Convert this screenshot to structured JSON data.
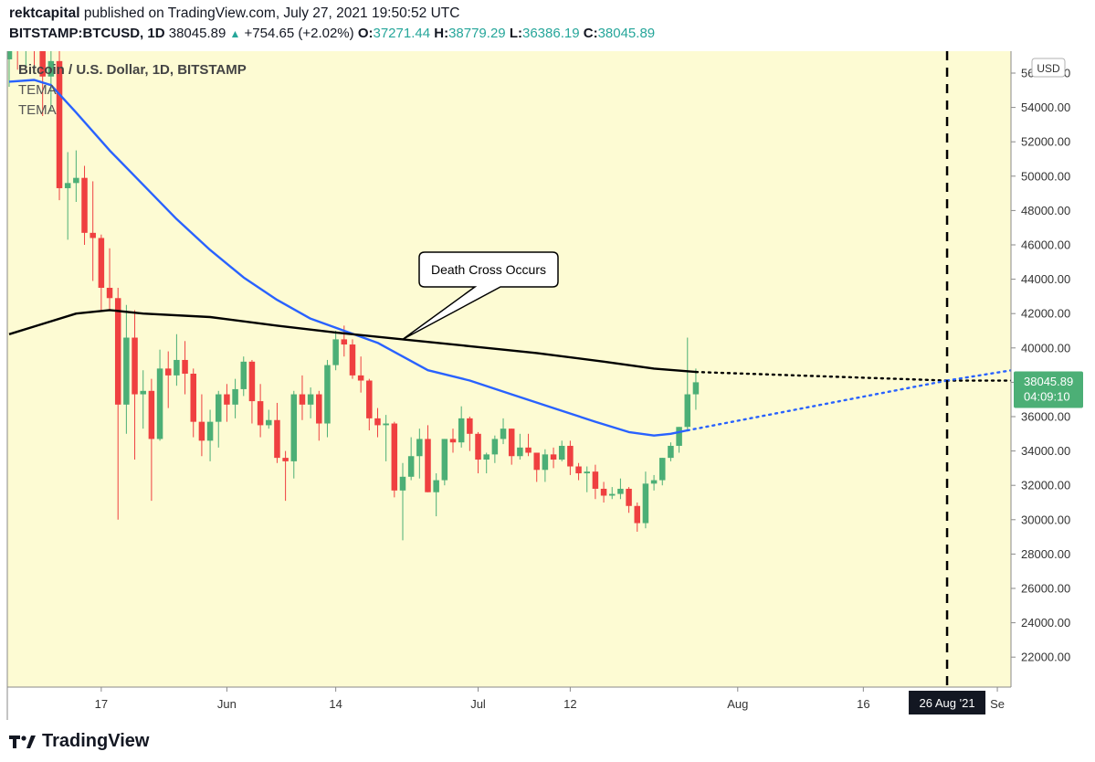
{
  "header": {
    "author": "rektcapital",
    "published_text": "published on TradingView.com, July 27, 2021 19:50:52 UTC"
  },
  "ohlc_bar": {
    "symbol": "BITSTAMP:BTCUSD, 1D",
    "last": "38045.89",
    "up_arrow": "▲",
    "change": "+754.65 (+2.02%)",
    "o_label": "O:",
    "o_value": "37271.44",
    "h_label": "H:",
    "h_value": "38779.29",
    "l_label": "L:",
    "l_value": "36386.19",
    "c_label": "C:",
    "c_value": "38045.89"
  },
  "legend": {
    "title": "Bitcoin / U.S. Dollar, 1D, BITSTAMP",
    "indicator_1": "TEMA",
    "indicator_2": "TEMA"
  },
  "price_axis": {
    "currency": "USD",
    "ticks": [
      "56000.00",
      "54000.00",
      "52000.00",
      "50000.00",
      "48000.00",
      "46000.00",
      "44000.00",
      "42000.00",
      "40000.00",
      "38000.00",
      "36000.00",
      "34000.00",
      "32000.00",
      "30000.00",
      "28000.00",
      "26000.00",
      "24000.00",
      "22000.00"
    ],
    "last_price_label": "38045.89",
    "countdown_label": "04:09:10"
  },
  "time_axis": {
    "ticks": [
      "17",
      "Jun",
      "14",
      "Jul",
      "12",
      "Aug",
      "16",
      "Se"
    ],
    "crosshair_label": "26 Aug '21"
  },
  "annotation": {
    "text": "Death Cross Occurs"
  },
  "footer": {
    "brand": "TradingView"
  },
  "colors": {
    "background": "#fdfbd3",
    "up": "#4caf76",
    "down": "#ef4040",
    "tema_fast": "#2962ff",
    "tema_slow": "#000000",
    "last_price_badge": "#4caf76"
  },
  "chart_data": {
    "type": "candlestick",
    "title": "Bitcoin / U.S. Dollar, 1D, BITSTAMP",
    "ylabel": "USD",
    "ylim": [
      21000,
      57500
    ],
    "xlim": [
      "2021-05-06",
      "2021-09-04"
    ],
    "candles": [
      {
        "d": "2021-05-06",
        "o": 56800,
        "h": 58400,
        "l": 55200,
        "c": 57400
      },
      {
        "d": "2021-05-07",
        "o": 57400,
        "h": 58100,
        "l": 56200,
        "c": 57300
      },
      {
        "d": "2021-05-08",
        "o": 57400,
        "h": 59400,
        "l": 56400,
        "c": 58800
      },
      {
        "d": "2021-05-09",
        "o": 58900,
        "h": 59200,
        "l": 56300,
        "c": 58200
      },
      {
        "d": "2021-05-10",
        "o": 58200,
        "h": 59500,
        "l": 53500,
        "c": 55800
      },
      {
        "d": "2021-05-11",
        "o": 55800,
        "h": 57300,
        "l": 53800,
        "c": 56700
      },
      {
        "d": "2021-05-12",
        "o": 56700,
        "h": 58000,
        "l": 48600,
        "c": 49300
      },
      {
        "d": "2021-05-13",
        "o": 49300,
        "h": 51400,
        "l": 46300,
        "c": 49600
      },
      {
        "d": "2021-05-14",
        "o": 49600,
        "h": 51500,
        "l": 48500,
        "c": 49900
      },
      {
        "d": "2021-05-15",
        "o": 49900,
        "h": 50600,
        "l": 46000,
        "c": 46700
      },
      {
        "d": "2021-05-16",
        "o": 46700,
        "h": 49700,
        "l": 43900,
        "c": 46400
      },
      {
        "d": "2021-05-17",
        "o": 46400,
        "h": 46600,
        "l": 42200,
        "c": 43500
      },
      {
        "d": "2021-05-18",
        "o": 43500,
        "h": 45800,
        "l": 42200,
        "c": 42900
      },
      {
        "d": "2021-05-19",
        "o": 42900,
        "h": 43500,
        "l": 30000,
        "c": 36700
      },
      {
        "d": "2021-05-20",
        "o": 36700,
        "h": 42500,
        "l": 35000,
        "c": 40600
      },
      {
        "d": "2021-05-21",
        "o": 40600,
        "h": 42200,
        "l": 33500,
        "c": 37300
      },
      {
        "d": "2021-05-22",
        "o": 37300,
        "h": 38700,
        "l": 35300,
        "c": 37500
      },
      {
        "d": "2021-05-23",
        "o": 37500,
        "h": 38200,
        "l": 31100,
        "c": 34700
      },
      {
        "d": "2021-05-24",
        "o": 34700,
        "h": 39900,
        "l": 34600,
        "c": 38800
      },
      {
        "d": "2021-05-25",
        "o": 38800,
        "h": 39800,
        "l": 36500,
        "c": 38400
      },
      {
        "d": "2021-05-26",
        "o": 38400,
        "h": 40800,
        "l": 37800,
        "c": 39300
      },
      {
        "d": "2021-05-27",
        "o": 39300,
        "h": 40400,
        "l": 37300,
        "c": 38500
      },
      {
        "d": "2021-05-28",
        "o": 38500,
        "h": 38800,
        "l": 34800,
        "c": 35700
      },
      {
        "d": "2021-05-29",
        "o": 35700,
        "h": 37300,
        "l": 33700,
        "c": 34600
      },
      {
        "d": "2021-05-30",
        "o": 34600,
        "h": 36400,
        "l": 33400,
        "c": 35700
      },
      {
        "d": "2021-05-31",
        "o": 35700,
        "h": 37500,
        "l": 34200,
        "c": 37300
      },
      {
        "d": "2021-06-01",
        "o": 37300,
        "h": 37900,
        "l": 35700,
        "c": 36700
      },
      {
        "d": "2021-06-02",
        "o": 36700,
        "h": 38200,
        "l": 35900,
        "c": 37600
      },
      {
        "d": "2021-06-03",
        "o": 37600,
        "h": 39500,
        "l": 37200,
        "c": 39200
      },
      {
        "d": "2021-06-04",
        "o": 39200,
        "h": 39300,
        "l": 35600,
        "c": 36900
      },
      {
        "d": "2021-06-05",
        "o": 36900,
        "h": 37900,
        "l": 34800,
        "c": 35500
      },
      {
        "d": "2021-06-06",
        "o": 35500,
        "h": 36400,
        "l": 35300,
        "c": 35800
      },
      {
        "d": "2021-06-07",
        "o": 35800,
        "h": 36800,
        "l": 33300,
        "c": 33600
      },
      {
        "d": "2021-06-08",
        "o": 33600,
        "h": 34000,
        "l": 31100,
        "c": 33400
      },
      {
        "d": "2021-06-09",
        "o": 33400,
        "h": 37500,
        "l": 32400,
        "c": 37300
      },
      {
        "d": "2021-06-10",
        "o": 37300,
        "h": 38400,
        "l": 35800,
        "c": 36700
      },
      {
        "d": "2021-06-11",
        "o": 36700,
        "h": 37700,
        "l": 35900,
        "c": 37300
      },
      {
        "d": "2021-06-12",
        "o": 37300,
        "h": 37500,
        "l": 34600,
        "c": 35600
      },
      {
        "d": "2021-06-13",
        "o": 35600,
        "h": 39300,
        "l": 34800,
        "c": 39000
      },
      {
        "d": "2021-06-14",
        "o": 39000,
        "h": 41000,
        "l": 38700,
        "c": 40500
      },
      {
        "d": "2021-06-15",
        "o": 40500,
        "h": 41300,
        "l": 39500,
        "c": 40200
      },
      {
        "d": "2021-06-16",
        "o": 40200,
        "h": 40500,
        "l": 38200,
        "c": 38400
      },
      {
        "d": "2021-06-17",
        "o": 38400,
        "h": 39500,
        "l": 37400,
        "c": 38100
      },
      {
        "d": "2021-06-18",
        "o": 38100,
        "h": 38200,
        "l": 35200,
        "c": 35900
      },
      {
        "d": "2021-06-19",
        "o": 35900,
        "h": 36500,
        "l": 34800,
        "c": 35500
      },
      {
        "d": "2021-06-20",
        "o": 35500,
        "h": 36100,
        "l": 33400,
        "c": 35600
      },
      {
        "d": "2021-06-21",
        "o": 35600,
        "h": 35700,
        "l": 31300,
        "c": 31700
      },
      {
        "d": "2021-06-22",
        "o": 31700,
        "h": 33300,
        "l": 28800,
        "c": 32500
      },
      {
        "d": "2021-06-23",
        "o": 32500,
        "h": 34800,
        "l": 32300,
        "c": 33700
      },
      {
        "d": "2021-06-24",
        "o": 33700,
        "h": 35300,
        "l": 32400,
        "c": 34700
      },
      {
        "d": "2021-06-25",
        "o": 34700,
        "h": 35500,
        "l": 31600,
        "c": 31600
      },
      {
        "d": "2021-06-26",
        "o": 31600,
        "h": 32700,
        "l": 30200,
        "c": 32300
      },
      {
        "d": "2021-06-27",
        "o": 32300,
        "h": 34700,
        "l": 32000,
        "c": 34700
      },
      {
        "d": "2021-06-28",
        "o": 34700,
        "h": 35300,
        "l": 33900,
        "c": 34500
      },
      {
        "d": "2021-06-29",
        "o": 34500,
        "h": 36600,
        "l": 34200,
        "c": 35900
      },
      {
        "d": "2021-06-30",
        "o": 35900,
        "h": 36000,
        "l": 34000,
        "c": 35000
      },
      {
        "d": "2021-07-01",
        "o": 35000,
        "h": 35100,
        "l": 32700,
        "c": 33500
      },
      {
        "d": "2021-07-02",
        "o": 33500,
        "h": 33900,
        "l": 32700,
        "c": 33800
      },
      {
        "d": "2021-07-03",
        "o": 33800,
        "h": 34900,
        "l": 33300,
        "c": 34700
      },
      {
        "d": "2021-07-04",
        "o": 34700,
        "h": 35900,
        "l": 34400,
        "c": 35300
      },
      {
        "d": "2021-07-05",
        "o": 35300,
        "h": 35300,
        "l": 33200,
        "c": 33700
      },
      {
        "d": "2021-07-06",
        "o": 33700,
        "h": 35000,
        "l": 33500,
        "c": 34200
      },
      {
        "d": "2021-07-07",
        "o": 34200,
        "h": 35000,
        "l": 33700,
        "c": 33900
      },
      {
        "d": "2021-07-08",
        "o": 33900,
        "h": 33900,
        "l": 32200,
        "c": 32900
      },
      {
        "d": "2021-07-09",
        "o": 32900,
        "h": 34100,
        "l": 32200,
        "c": 33800
      },
      {
        "d": "2021-07-10",
        "o": 33800,
        "h": 34200,
        "l": 33000,
        "c": 33500
      },
      {
        "d": "2021-07-11",
        "o": 33500,
        "h": 34600,
        "l": 33400,
        "c": 34300
      },
      {
        "d": "2021-07-12",
        "o": 34300,
        "h": 34600,
        "l": 32600,
        "c": 33100
      },
      {
        "d": "2021-07-13",
        "o": 33100,
        "h": 33300,
        "l": 32300,
        "c": 32700
      },
      {
        "d": "2021-07-14",
        "o": 32700,
        "h": 33100,
        "l": 31600,
        "c": 32800
      },
      {
        "d": "2021-07-15",
        "o": 32800,
        "h": 33200,
        "l": 31200,
        "c": 31800
      },
      {
        "d": "2021-07-16",
        "o": 31800,
        "h": 32200,
        "l": 31000,
        "c": 31400
      },
      {
        "d": "2021-07-17",
        "o": 31400,
        "h": 31900,
        "l": 31200,
        "c": 31500
      },
      {
        "d": "2021-07-18",
        "o": 31500,
        "h": 32400,
        "l": 31200,
        "c": 31800
      },
      {
        "d": "2021-07-19",
        "o": 31800,
        "h": 31900,
        "l": 30400,
        "c": 30800
      },
      {
        "d": "2021-07-20",
        "o": 30800,
        "h": 31000,
        "l": 29300,
        "c": 29800
      },
      {
        "d": "2021-07-21",
        "o": 29800,
        "h": 32800,
        "l": 29500,
        "c": 32100
      },
      {
        "d": "2021-07-22",
        "o": 32100,
        "h": 32600,
        "l": 31700,
        "c": 32300
      },
      {
        "d": "2021-07-23",
        "o": 32300,
        "h": 33600,
        "l": 32000,
        "c": 33600
      },
      {
        "d": "2021-07-24",
        "o": 33600,
        "h": 34500,
        "l": 33400,
        "c": 34300
      },
      {
        "d": "2021-07-25",
        "o": 34300,
        "h": 35400,
        "l": 33900,
        "c": 35400
      },
      {
        "d": "2021-07-26",
        "o": 35400,
        "h": 40600,
        "l": 35200,
        "c": 37300
      },
      {
        "d": "2021-07-27",
        "o": 37300,
        "h": 38800,
        "l": 36400,
        "c": 38000
      }
    ],
    "series": [
      {
        "name": "TEMA",
        "color": "#2962ff",
        "points": [
          [
            "2021-05-06",
            55500
          ],
          [
            "2021-05-09",
            55600
          ],
          [
            "2021-05-11",
            55300
          ],
          [
            "2021-05-14",
            53700
          ],
          [
            "2021-05-18",
            51500
          ],
          [
            "2021-05-22",
            49500
          ],
          [
            "2021-05-26",
            47500
          ],
          [
            "2021-05-30",
            45700
          ],
          [
            "2021-06-03",
            44100
          ],
          [
            "2021-06-07",
            42800
          ],
          [
            "2021-06-11",
            41700
          ],
          [
            "2021-06-15",
            41000
          ],
          [
            "2021-06-19",
            40300
          ],
          [
            "2021-06-22",
            39500
          ],
          [
            "2021-06-25",
            38700
          ],
          [
            "2021-06-30",
            38100
          ],
          [
            "2021-07-05",
            37300
          ],
          [
            "2021-07-10",
            36500
          ],
          [
            "2021-07-15",
            35700
          ],
          [
            "2021-07-19",
            35100
          ],
          [
            "2021-07-22",
            34900
          ],
          [
            "2021-07-24",
            35000
          ],
          [
            "2021-07-26",
            35200
          ]
        ]
      },
      {
        "name": "TEMA",
        "color": "#000000",
        "points": [
          [
            "2021-05-06",
            40800
          ],
          [
            "2021-05-10",
            41400
          ],
          [
            "2021-05-14",
            42000
          ],
          [
            "2021-05-18",
            42200
          ],
          [
            "2021-05-22",
            42000
          ],
          [
            "2021-05-30",
            41800
          ],
          [
            "2021-06-07",
            41300
          ],
          [
            "2021-06-14",
            40900
          ],
          [
            "2021-06-22",
            40500
          ],
          [
            "2021-06-30",
            40100
          ],
          [
            "2021-07-08",
            39700
          ],
          [
            "2021-07-16",
            39200
          ],
          [
            "2021-07-22",
            38800
          ],
          [
            "2021-07-27",
            38600
          ]
        ]
      }
    ],
    "projections": [
      {
        "series": "TEMA (black)",
        "style": "dotted",
        "from": [
          "2021-07-27",
          38600
        ],
        "to": [
          "2021-08-26",
          38100
        ],
        "extend_to": [
          "2021-09-04",
          38100
        ]
      },
      {
        "series": "TEMA (blue)",
        "style": "dotted",
        "from": [
          "2021-07-26",
          35200
        ],
        "to": [
          "2021-08-26",
          38100
        ],
        "extend_to": [
          "2021-09-04",
          38800
        ]
      }
    ],
    "annotations": [
      {
        "text": "Death Cross Occurs",
        "date": "2021-06-22",
        "price": 40500
      }
    ],
    "markers": [
      {
        "type": "vertical-dashed-line",
        "date": "2021-08-26",
        "label": "26 Aug '21"
      }
    ],
    "grid": false
  }
}
